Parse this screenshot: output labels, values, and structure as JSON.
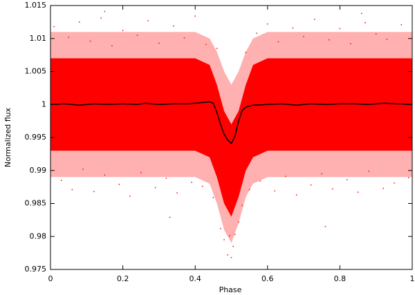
{
  "chart_data": {
    "type": "scatter",
    "xlabel": "Phase",
    "ylabel": "Normalized flux",
    "xlim": [
      0,
      1
    ],
    "ylim": [
      0.975,
      1.015
    ],
    "xticks": [
      0,
      0.2,
      0.4,
      0.6,
      0.8,
      1
    ],
    "yticks": [
      0.975,
      0.98,
      0.985,
      0.99,
      0.995,
      1,
      1.005,
      1.01,
      1.015
    ],
    "bands": [
      {
        "color": "#ffb0b0",
        "x": [
          0,
          0.1,
          0.2,
          0.3,
          0.4,
          0.44,
          0.46,
          0.48,
          0.5,
          0.52,
          0.54,
          0.56,
          0.6,
          0.7,
          0.8,
          0.9,
          1
        ],
        "low": [
          0.989,
          0.989,
          0.989,
          0.989,
          0.989,
          0.988,
          0.985,
          0.981,
          0.979,
          0.982,
          0.986,
          0.988,
          0.989,
          0.989,
          0.989,
          0.989,
          0.989
        ],
        "high": [
          1.011,
          1.011,
          1.011,
          1.011,
          1.011,
          1.01,
          1.008,
          1.005,
          1.003,
          1.005,
          1.008,
          1.01,
          1.011,
          1.011,
          1.011,
          1.011,
          1.011
        ]
      },
      {
        "color": "#ff0000",
        "x": [
          0,
          0.1,
          0.2,
          0.3,
          0.4,
          0.44,
          0.46,
          0.48,
          0.5,
          0.52,
          0.54,
          0.56,
          0.6,
          0.7,
          0.8,
          0.9,
          1
        ],
        "low": [
          0.993,
          0.993,
          0.993,
          0.993,
          0.993,
          0.992,
          0.989,
          0.985,
          0.983,
          0.986,
          0.99,
          0.992,
          0.993,
          0.993,
          0.993,
          0.993,
          0.993
        ],
        "high": [
          1.007,
          1.007,
          1.007,
          1.007,
          1.007,
          1.006,
          1.003,
          0.999,
          0.997,
          0.999,
          1.003,
          1.006,
          1.007,
          1.007,
          1.007,
          1.007,
          1.007
        ]
      }
    ],
    "series": [
      {
        "color": "#ff0000",
        "x": [
          0.01,
          0.03,
          0.05,
          0.06,
          0.08,
          0.09,
          0.11,
          0.12,
          0.14,
          0.15,
          0.17,
          0.19,
          0.2,
          0.22,
          0.24,
          0.25,
          0.27,
          0.29,
          0.3,
          0.32,
          0.34,
          0.35,
          0.37,
          0.39,
          0.4,
          0.42,
          0.43,
          0.45,
          0.47,
          0.48,
          0.49,
          0.495,
          0.5,
          0.505,
          0.51,
          0.52,
          0.53,
          0.55,
          0.57,
          0.58,
          0.6,
          0.62,
          0.63,
          0.65,
          0.67,
          0.68,
          0.7,
          0.72,
          0.73,
          0.75,
          0.77,
          0.78,
          0.8,
          0.82,
          0.83,
          0.85,
          0.87,
          0.88,
          0.9,
          0.92,
          0.93,
          0.95,
          0.97,
          0.99,
          0.46,
          0.54,
          0.33,
          0.76,
          0.15,
          0.86
        ],
        "values": [
          1.0118,
          0.9885,
          1.0102,
          0.9871,
          1.0125,
          0.9902,
          1.0096,
          0.9868,
          1.0131,
          0.9893,
          1.0089,
          0.9879,
          1.0112,
          0.9861,
          1.0105,
          0.9897,
          1.0127,
          0.9874,
          1.0093,
          0.9888,
          1.0119,
          0.9866,
          1.0101,
          0.9882,
          1.0134,
          0.9876,
          1.0091,
          0.9859,
          0.9812,
          0.9795,
          0.9772,
          0.9801,
          0.9768,
          0.9785,
          0.9803,
          0.9822,
          0.9847,
          0.9871,
          1.0108,
          0.9884,
          1.0122,
          0.9869,
          1.0095,
          0.9891,
          1.0116,
          0.9863,
          1.0103,
          0.9878,
          1.0129,
          0.9895,
          1.0098,
          0.9872,
          1.0115,
          0.9886,
          1.0092,
          0.9867,
          1.0124,
          0.9899,
          1.0107,
          0.9873,
          1.0099,
          0.9881,
          1.0121,
          0.9889,
          1.0085,
          1.0079,
          0.9829,
          0.9815,
          1.0141,
          1.0138
        ]
      },
      {
        "color": "#000000",
        "line": true,
        "x": [
          0,
          0.04,
          0.08,
          0.12,
          0.16,
          0.2,
          0.24,
          0.26,
          0.3,
          0.34,
          0.38,
          0.42,
          0.44,
          0.45,
          0.46,
          0.47,
          0.48,
          0.49,
          0.5,
          0.51,
          0.52,
          0.53,
          0.54,
          0.56,
          0.6,
          0.64,
          0.68,
          0.72,
          0.76,
          0.8,
          0.84,
          0.88,
          0.92,
          0.96,
          1
        ],
        "values": [
          1.0,
          1.0001,
          0.9999,
          1.0001,
          1.0,
          1.0001,
          1.0,
          1.0002,
          1.0,
          1.0001,
          1.0001,
          1.0003,
          1.0004,
          1.0002,
          0.9988,
          0.997,
          0.9955,
          0.9946,
          0.9941,
          0.9952,
          0.9975,
          0.9991,
          0.9996,
          0.9999,
          1.0,
          1.0001,
          0.9999,
          1.0001,
          1.0,
          1.0001,
          1.0001,
          1.0,
          1.0002,
          1.0001,
          1.0
        ]
      }
    ]
  }
}
